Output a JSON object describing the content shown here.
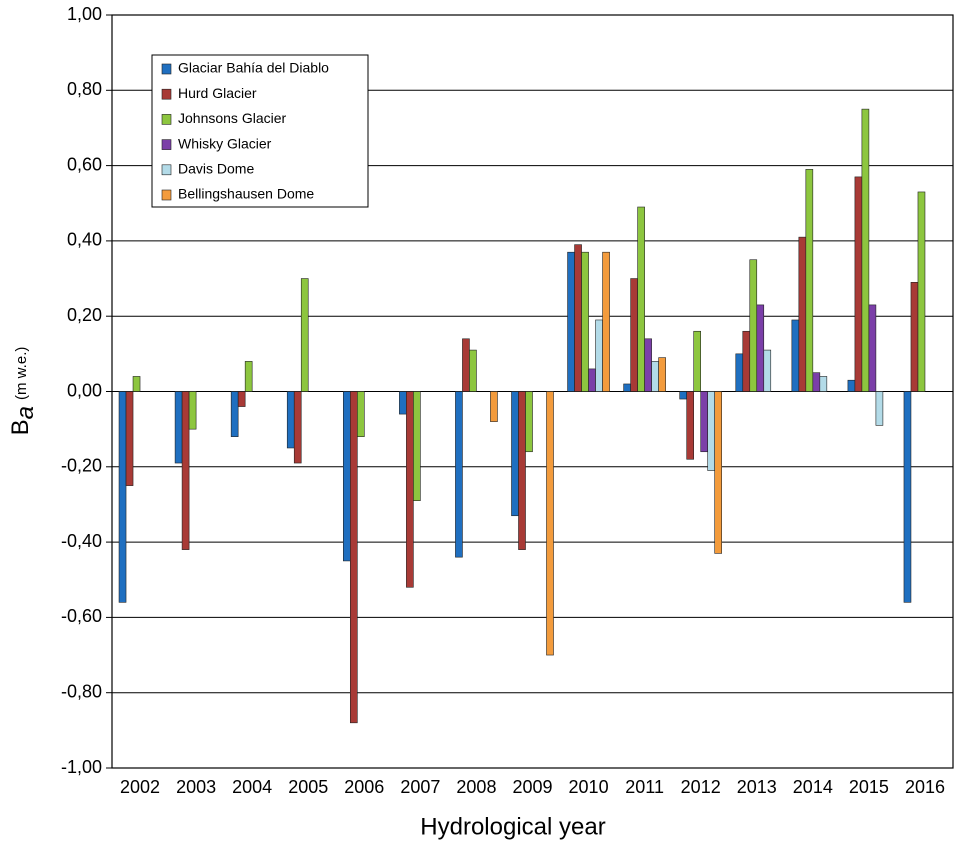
{
  "chart_data": {
    "type": "bar",
    "xlabel": "Hydrological year",
    "ylabel": {
      "main": "B",
      "sub": "a",
      "unit": "(m w.e.)"
    },
    "categories": [
      "2002",
      "2003",
      "2004",
      "2005",
      "2006",
      "2007",
      "2008",
      "2009",
      "2010",
      "2011",
      "2012",
      "2013",
      "2014",
      "2015",
      "2016"
    ],
    "series": [
      {
        "name": "Glaciar Bahía del Diablo",
        "color": "#1f6fc0",
        "values": [
          -0.56,
          -0.19,
          -0.12,
          -0.15,
          -0.45,
          -0.06,
          -0.44,
          -0.33,
          0.37,
          0.02,
          -0.02,
          0.1,
          0.19,
          0.03,
          -0.56
        ]
      },
      {
        "name": "Hurd Glacier",
        "color": "#a83a36",
        "values": [
          -0.25,
          -0.42,
          -0.04,
          -0.19,
          -0.88,
          -0.52,
          0.14,
          -0.42,
          0.39,
          0.3,
          -0.18,
          0.16,
          0.41,
          0.57,
          0.29
        ]
      },
      {
        "name": "Johnsons Glacier",
        "color": "#8dc63f",
        "values": [
          0.04,
          -0.1,
          0.08,
          0.3,
          -0.12,
          -0.29,
          0.11,
          -0.16,
          0.37,
          0.49,
          0.16,
          0.35,
          0.59,
          0.75,
          0.53
        ]
      },
      {
        "name": "Whisky Glacier",
        "color": "#7b3fa8",
        "values": [
          null,
          null,
          null,
          null,
          null,
          null,
          null,
          null,
          0.06,
          0.14,
          -0.16,
          0.23,
          0.05,
          0.23,
          null
        ]
      },
      {
        "name": "Davis Dome",
        "color": "#b3dbe8",
        "values": [
          null,
          null,
          null,
          null,
          null,
          null,
          null,
          null,
          0.19,
          0.08,
          -0.21,
          0.11,
          0.04,
          -0.09,
          null
        ]
      },
      {
        "name": "Bellingshausen Dome",
        "color": "#f39b3c",
        "values": [
          null,
          null,
          null,
          null,
          null,
          null,
          -0.08,
          -0.7,
          0.37,
          0.09,
          -0.43,
          null,
          null,
          null,
          null
        ]
      }
    ],
    "ylim": [
      -1,
      1
    ],
    "yticks": [
      {
        "value": -1,
        "label": "-1,00"
      },
      {
        "value": -0.8,
        "label": "-0,80"
      },
      {
        "value": -0.6,
        "label": "-0,60"
      },
      {
        "value": -0.4,
        "label": "-0,40"
      },
      {
        "value": -0.2,
        "label": "-0,20"
      },
      {
        "value": 0,
        "label": "0,00"
      },
      {
        "value": 0.2,
        "label": "0,20"
      },
      {
        "value": 0.4,
        "label": "0,40"
      },
      {
        "value": 0.6,
        "label": "0,60"
      },
      {
        "value": 0.8,
        "label": "0,80"
      },
      {
        "value": 1,
        "label": "1,00"
      }
    ],
    "grid": true,
    "legend": "upper-left"
  }
}
